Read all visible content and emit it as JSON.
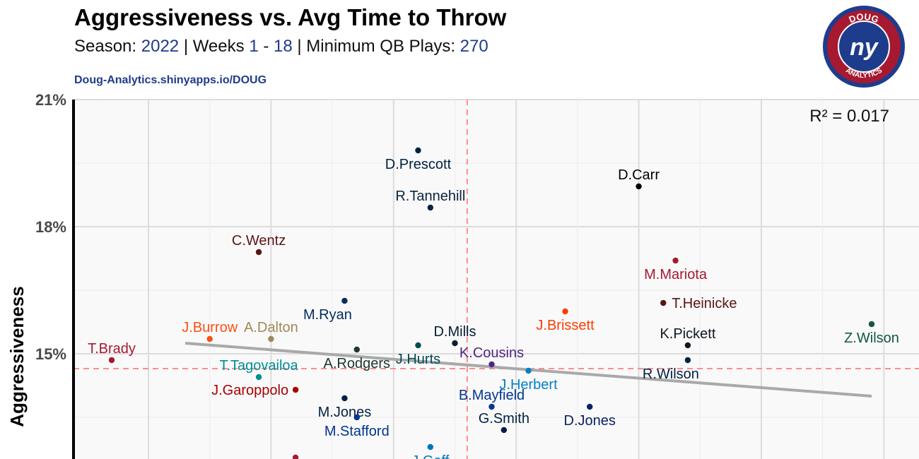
{
  "header": {
    "title": "Aggressiveness vs. Avg Time to Throw",
    "season_label": "Season:",
    "season": "2022",
    "weeks_label": "| Weeks",
    "week_start": "1",
    "week_dash": "-",
    "week_end": "18",
    "min_label": "| Minimum QB Plays:",
    "min_plays": "270",
    "credit": "Doug-Analytics.shinyapps.io/DOUG"
  },
  "logo": {
    "top_text": "DOUG",
    "bottom_text": "ANALYTICS",
    "mark": "ny",
    "colors": {
      "navy": "#1e3c8c",
      "red": "#a71930",
      "white": "#ffffff"
    }
  },
  "chart_data": {
    "type": "scatter",
    "title": "Aggressiveness vs. Avg Time to Throw",
    "xlabel": "",
    "ylabel": "Aggressiveness",
    "ylim": [
      11.5,
      21
    ],
    "xlim": [
      2.45,
      3.1
    ],
    "yticks": [
      "21%",
      "18%",
      "15%"
    ],
    "ytick_values": [
      21,
      18,
      15
    ],
    "annotation": "R² = 0.017",
    "mean_x": 2.76,
    "mean_y": 14.65,
    "trend": {
      "x1": 2.53,
      "y1": 15.25,
      "x2": 3.09,
      "y2": 14.0
    },
    "points": [
      {
        "name": "D.Prescott",
        "x": 2.72,
        "y": 19.8,
        "color": "#002244",
        "label_pos": "below"
      },
      {
        "name": "R.Tannehill",
        "x": 2.73,
        "y": 18.45,
        "color": "#0c2340",
        "label_pos": "above"
      },
      {
        "name": "D.Carr",
        "x": 2.9,
        "y": 18.95,
        "color": "#000000",
        "label_pos": "above"
      },
      {
        "name": "C.Wentz",
        "x": 2.59,
        "y": 17.4,
        "color": "#5a1414",
        "label_pos": "above"
      },
      {
        "name": "M.Mariota",
        "x": 2.93,
        "y": 17.2,
        "color": "#a71930",
        "label_pos": "below"
      },
      {
        "name": "T.Heinicke",
        "x": 2.92,
        "y": 16.2,
        "color": "#5a1414",
        "label_pos": "right"
      },
      {
        "name": "M.Ryan",
        "x": 2.66,
        "y": 16.25,
        "color": "#002c5f",
        "label_pos": "below-left"
      },
      {
        "name": "J.Brissett",
        "x": 2.84,
        "y": 16.0,
        "color": "#ff3c00",
        "label_pos": "below"
      },
      {
        "name": "J.Burrow",
        "x": 2.55,
        "y": 15.35,
        "color": "#fb4f14",
        "label_pos": "above"
      },
      {
        "name": "A.Dalton",
        "x": 2.6,
        "y": 15.35,
        "color": "#9f8958",
        "label_pos": "above"
      },
      {
        "name": "T.Brady",
        "x": 2.47,
        "y": 14.85,
        "color": "#a71930",
        "label_pos": "above"
      },
      {
        "name": "Z.Wilson",
        "x": 3.09,
        "y": 15.7,
        "color": "#125740",
        "label_pos": "below"
      },
      {
        "name": "K.Pickett",
        "x": 2.94,
        "y": 15.2,
        "color": "#101820",
        "label_pos": "above"
      },
      {
        "name": "D.Mills",
        "x": 2.75,
        "y": 15.25,
        "color": "#03202f",
        "label_pos": "above"
      },
      {
        "name": "J.Hurts",
        "x": 2.72,
        "y": 15.2,
        "color": "#004c54",
        "label_pos": "below"
      },
      {
        "name": "A.Rodgers",
        "x": 2.67,
        "y": 15.1,
        "color": "#203731",
        "label_pos": "below"
      },
      {
        "name": "K.Cousins",
        "x": 2.78,
        "y": 14.75,
        "color": "#4f2683",
        "label_pos": "above"
      },
      {
        "name": "R.Wilson",
        "x": 2.94,
        "y": 14.85,
        "color": "#002244",
        "label_pos": "below-left"
      },
      {
        "name": "T.Tagovailoa",
        "x": 2.59,
        "y": 14.45,
        "color": "#008e97",
        "label_pos": "above"
      },
      {
        "name": "J.Herbert",
        "x": 2.81,
        "y": 14.6,
        "color": "#0080c6",
        "label_pos": "below"
      },
      {
        "name": "J.Garoppolo",
        "x": 2.62,
        "y": 14.15,
        "color": "#aa0000",
        "label_pos": "left"
      },
      {
        "name": "M.Jones",
        "x": 2.66,
        "y": 13.95,
        "color": "#002244",
        "label_pos": "below"
      },
      {
        "name": "B.Mayfield",
        "x": 2.78,
        "y": 13.75,
        "color": "#003594",
        "label_pos": "above"
      },
      {
        "name": "D.Jones",
        "x": 2.86,
        "y": 13.75,
        "color": "#0b2265",
        "label_pos": "below"
      },
      {
        "name": "M.Stafford",
        "x": 2.67,
        "y": 13.5,
        "color": "#003594",
        "label_pos": "below"
      },
      {
        "name": "G.Smith",
        "x": 2.79,
        "y": 13.2,
        "color": "#002244",
        "label_pos": "above"
      },
      {
        "name": "J.Goff",
        "x": 2.73,
        "y": 12.8,
        "color": "#0076b6",
        "label_pos": "below"
      },
      {
        "name": "",
        "x": 2.62,
        "y": 12.55,
        "color": "#a71930",
        "label_pos": "none"
      }
    ]
  }
}
